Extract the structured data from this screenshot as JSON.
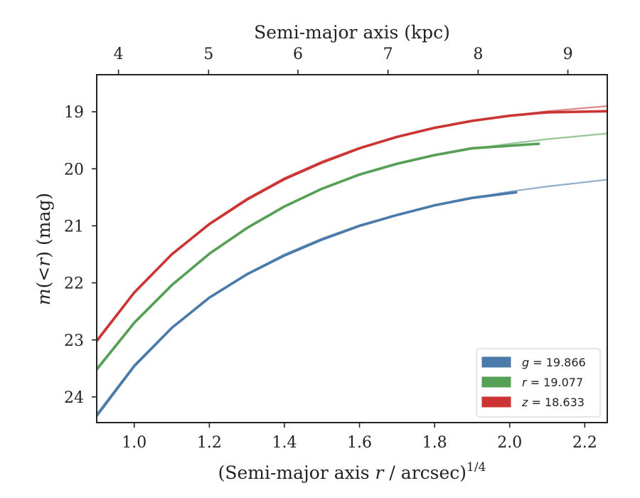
{
  "chart_data": {
    "type": "line",
    "xlabel": "(Semi-major axis r / arcsec)^{1/4}",
    "xlabel_parts": {
      "prefix": "(Semi-major axis ",
      "var": "r",
      "suffix": " / arcsec)",
      "sup": "1/4"
    },
    "x2label": "Semi-major axis (kpc)",
    "ylabel": "m(<r) (mag)",
    "ylabel_parts": {
      "m": "m",
      "open": "(",
      "lt": "<",
      "r": "r",
      "close": ")",
      "unit": " (mag)"
    },
    "xlim": [
      0.9,
      2.26
    ],
    "ylim": [
      24.45,
      18.35
    ],
    "y_inverted": true,
    "x_ticks": [
      "1.0",
      "1.2",
      "1.4",
      "1.6",
      "1.8",
      "2.0",
      "2.2"
    ],
    "y_ticks": [
      "19",
      "20",
      "21",
      "22",
      "23",
      "24"
    ],
    "x2_ticks": [
      "4",
      "5",
      "6",
      "7",
      "8",
      "9"
    ],
    "x2_tick_positions_x": [
      0.958,
      1.198,
      1.436,
      1.676,
      1.916,
      2.155
    ],
    "legend_position": "lower right",
    "series": [
      {
        "name": "g = 19.866",
        "legend": {
          "var": "g",
          "eq": " = ",
          "val": "19.866"
        },
        "color": "#4a7aaa",
        "data_x": [
          0.9,
          1.0,
          1.1,
          1.2,
          1.3,
          1.4,
          1.5,
          1.6,
          1.7,
          1.8,
          1.9,
          2.02
        ],
        "data_y": [
          24.33,
          23.46,
          22.79,
          22.26,
          21.85,
          21.52,
          21.24,
          21.0,
          20.81,
          20.64,
          20.51,
          20.41
        ],
        "model_x": [
          0.9,
          1.0,
          1.1,
          1.2,
          1.3,
          1.4,
          1.5,
          1.6,
          1.7,
          1.8,
          1.9,
          2.0,
          2.1,
          2.26
        ],
        "model_y": [
          24.3,
          23.44,
          22.78,
          22.25,
          21.84,
          21.5,
          21.22,
          20.99,
          20.8,
          20.64,
          20.51,
          20.4,
          20.31,
          20.19
        ]
      },
      {
        "name": "r = 19.077",
        "legend": {
          "var": "r",
          "eq": " = ",
          "val": "19.077"
        },
        "color": "#55a055",
        "data_x": [
          0.9,
          1.0,
          1.1,
          1.2,
          1.3,
          1.4,
          1.5,
          1.6,
          1.7,
          1.8,
          1.9,
          2.08
        ],
        "data_y": [
          23.52,
          22.7,
          22.04,
          21.49,
          21.04,
          20.66,
          20.35,
          20.1,
          19.91,
          19.76,
          19.64,
          19.56
        ],
        "model_x": [
          0.9,
          1.0,
          1.1,
          1.2,
          1.3,
          1.4,
          1.5,
          1.6,
          1.7,
          1.8,
          1.9,
          2.0,
          2.1,
          2.26
        ],
        "model_y": [
          23.5,
          22.69,
          22.03,
          21.48,
          21.03,
          20.66,
          20.35,
          20.11,
          19.92,
          19.77,
          19.65,
          19.56,
          19.48,
          19.38
        ]
      },
      {
        "name": "z = 18.633",
        "legend": {
          "var": "z",
          "eq": " = ",
          "val": "18.633"
        },
        "color": "#cc3333",
        "data_x": [
          0.9,
          1.0,
          1.1,
          1.2,
          1.3,
          1.4,
          1.5,
          1.6,
          1.7,
          1.8,
          1.9,
          2.0,
          2.1,
          2.26
        ],
        "data_y": [
          23.02,
          22.17,
          21.5,
          20.97,
          20.54,
          20.18,
          19.89,
          19.64,
          19.44,
          19.28,
          19.16,
          19.07,
          19.01,
          18.99
        ],
        "model_x": [
          0.9,
          1.0,
          1.1,
          1.2,
          1.3,
          1.4,
          1.5,
          1.6,
          1.7,
          1.8,
          1.9,
          2.0,
          2.1,
          2.26
        ],
        "model_y": [
          23.0,
          22.16,
          21.49,
          20.96,
          20.52,
          20.16,
          19.87,
          19.63,
          19.44,
          19.29,
          19.17,
          19.07,
          18.99,
          18.9
        ]
      }
    ]
  }
}
